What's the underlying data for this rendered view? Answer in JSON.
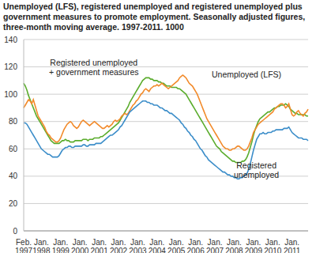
{
  "chart_data": {
    "type": "line",
    "title": "Unemployed (LFS), registered unemployed and registered unemployed plus government measures to promote employment. Seasonally adjusted figures, three-month moving average. 1997-2011. 1000",
    "categories": [
      "Feb. 1997",
      null,
      null,
      null,
      null,
      null,
      null,
      null,
      null,
      null,
      null,
      "Jan. 1998",
      null,
      null,
      null,
      null,
      null,
      null,
      null,
      null,
      null,
      null,
      null,
      "Jan. 1999",
      null,
      null,
      null,
      null,
      null,
      null,
      null,
      null,
      null,
      null,
      null,
      "Jan. 2000",
      null,
      null,
      null,
      null,
      null,
      null,
      null,
      null,
      null,
      null,
      null,
      "Jan. 2001",
      null,
      null,
      null,
      null,
      null,
      null,
      null,
      null,
      null,
      null,
      null,
      "Jan. 2002",
      null,
      null,
      null,
      null,
      null,
      null,
      null,
      null,
      null,
      null,
      null,
      "Jan. 2003",
      null,
      null,
      null,
      null,
      null,
      null,
      null,
      null,
      null,
      null,
      null,
      "Jan. 2004",
      null,
      null,
      null,
      null,
      null,
      null,
      null,
      null,
      null,
      null,
      null,
      "Jan. 2005",
      null,
      null,
      null,
      null,
      null,
      null,
      null,
      null,
      null,
      null,
      null,
      "Jan. 2006",
      null,
      null,
      null,
      null,
      null,
      null,
      null,
      null,
      null,
      null,
      null,
      "Jan. 2007",
      null,
      null,
      null,
      null,
      null,
      null,
      null,
      null,
      null,
      null,
      null,
      "Jan. 2008",
      null,
      null,
      null,
      null,
      null,
      null,
      null,
      null,
      null,
      null,
      null,
      "Jan. 2009",
      null,
      null,
      null,
      null,
      null,
      null,
      null,
      null,
      null,
      null,
      null,
      "Jan. 2010",
      null,
      null,
      null,
      null,
      null,
      null,
      null,
      null,
      null,
      null,
      null,
      "Jan. 2011",
      null,
      null,
      null,
      null,
      null,
      null,
      null,
      null,
      null,
      null
    ],
    "series": [
      {
        "name": "Registered unemployed + government measures",
        "color": "#5aac2c",
        "values": [
          108,
          106,
          103,
          99,
          96,
          93,
          90,
          87,
          84,
          82,
          80,
          78,
          76,
          74,
          72,
          70,
          68,
          66,
          65,
          64,
          64,
          64,
          64,
          65,
          66,
          66,
          67,
          66,
          66,
          65,
          65,
          65,
          66,
          66,
          66,
          66,
          66,
          67,
          67,
          67,
          66,
          67,
          67,
          67,
          68,
          68,
          68,
          68,
          69,
          69,
          70,
          71,
          72,
          73,
          74,
          75,
          76,
          77,
          78,
          79,
          81,
          83,
          85,
          87,
          89,
          91,
          94,
          96,
          98,
          100,
          102,
          104,
          106,
          108,
          110,
          111,
          112,
          112,
          112,
          111,
          111,
          110,
          110,
          110,
          109,
          109,
          108,
          108,
          107,
          106,
          106,
          106,
          105,
          105,
          105,
          105,
          104,
          104,
          103,
          102,
          101,
          100,
          98,
          96,
          94,
          92,
          90,
          88,
          86,
          84,
          82,
          80,
          78,
          76,
          74,
          72,
          70,
          68,
          66,
          64,
          62,
          61,
          60,
          58,
          57,
          56,
          55,
          54,
          53,
          52,
          51,
          51,
          50,
          50,
          50,
          50,
          51,
          51,
          52,
          54,
          57,
          61,
          65,
          70,
          74,
          77,
          80,
          82,
          83,
          84,
          85,
          86,
          87,
          87,
          88,
          89,
          90,
          90,
          91,
          91,
          92,
          92,
          92,
          93,
          92,
          91,
          89,
          88,
          87,
          86,
          86,
          85,
          85,
          85,
          85,
          85,
          84,
          84
        ]
      },
      {
        "name": "Unemployed (LFS)",
        "color": "#f28a2a",
        "values": [
          90,
          92,
          94,
          96,
          95,
          93,
          96,
          92,
          88,
          84,
          82,
          80,
          78,
          76,
          73,
          71,
          70,
          68,
          67,
          66,
          65,
          65,
          66,
          68,
          71,
          74,
          76,
          78,
          79,
          80,
          79,
          77,
          76,
          75,
          76,
          78,
          80,
          81,
          80,
          79,
          78,
          77,
          78,
          79,
          80,
          79,
          78,
          77,
          76,
          75,
          75,
          76,
          77,
          76,
          77,
          78,
          80,
          81,
          80,
          81,
          82,
          84,
          85,
          86,
          85,
          86,
          88,
          90,
          92,
          93,
          95,
          96,
          98,
          100,
          101,
          103,
          104,
          103,
          102,
          104,
          105,
          106,
          106,
          107,
          106,
          107,
          108,
          107,
          106,
          105,
          104,
          105,
          106,
          107,
          108,
          109,
          110,
          112,
          113,
          114,
          113,
          112,
          110,
          108,
          107,
          106,
          104,
          102,
          100,
          97,
          94,
          91,
          88,
          85,
          82,
          80,
          78,
          76,
          74,
          72,
          70,
          68,
          66,
          64,
          62,
          61,
          60,
          60,
          59,
          59,
          60,
          60,
          61,
          62,
          62,
          61,
          60,
          59,
          59,
          60,
          62,
          65,
          68,
          72,
          74,
          76,
          78,
          79,
          80,
          81,
          82,
          83,
          84,
          85,
          86,
          87,
          89,
          90,
          91,
          92,
          93,
          93,
          92,
          90,
          91,
          93,
          89,
          85,
          84,
          85,
          87,
          88,
          86,
          85,
          84,
          86,
          87,
          89
        ]
      },
      {
        "name": "Registered unemployed",
        "color": "#3b8dc9",
        "values": [
          79,
          79,
          78,
          76,
          74,
          72,
          70,
          68,
          66,
          64,
          62,
          60,
          59,
          58,
          57,
          56,
          56,
          55,
          54,
          54,
          54,
          54,
          55,
          57,
          59,
          60,
          61,
          61,
          62,
          62,
          61,
          61,
          62,
          62,
          62,
          62,
          62,
          63,
          63,
          62,
          62,
          63,
          63,
          63,
          63,
          64,
          64,
          64,
          64,
          65,
          66,
          67,
          68,
          69,
          70,
          70,
          71,
          72,
          73,
          74,
          76,
          77,
          79,
          81,
          83,
          85,
          87,
          88,
          89,
          90,
          91,
          92,
          93,
          94,
          95,
          95,
          95,
          94,
          94,
          93,
          93,
          92,
          92,
          92,
          91,
          90,
          90,
          89,
          88,
          88,
          87,
          86,
          86,
          85,
          84,
          83,
          82,
          81,
          79,
          78,
          76,
          75,
          73,
          72,
          70,
          69,
          67,
          66,
          64,
          62,
          60,
          59,
          57,
          55,
          54,
          52,
          51,
          50,
          49,
          48,
          47,
          46,
          45,
          44,
          43,
          43,
          42,
          41,
          41,
          40,
          40,
          39,
          39,
          38,
          38,
          39,
          39,
          40,
          41,
          42,
          45,
          49,
          54,
          59,
          63,
          67,
          69,
          71,
          71,
          72,
          71,
          71,
          72,
          72,
          72,
          73,
          73,
          74,
          74,
          74,
          74,
          74,
          75,
          75,
          75,
          76,
          74,
          72,
          71,
          70,
          69,
          68,
          68,
          68,
          67,
          67,
          67,
          66
        ]
      }
    ],
    "ylim": [
      0,
      140
    ],
    "yticks": [
      0,
      20,
      40,
      60,
      80,
      100,
      120,
      140
    ],
    "grid": true
  }
}
